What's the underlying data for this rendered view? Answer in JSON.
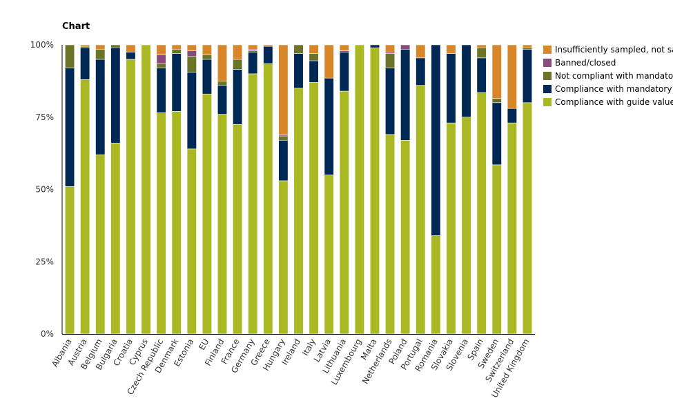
{
  "chart_data": {
    "type": "bar",
    "stacked": true,
    "normalized": true,
    "title": "Chart",
    "ylim": [
      0,
      100
    ],
    "yticks": [
      "0%",
      "25%",
      "50%",
      "75%",
      "100%"
    ],
    "legend_position": "right",
    "categories": [
      "Albania",
      "Austria",
      "Belgium",
      "Bulgaria",
      "Croatia",
      "Cyprus",
      "Czech Republic",
      "Denmark",
      "Estonia",
      "EU",
      "Finland",
      "France",
      "Germany",
      "Greece",
      "Hungary",
      "Ireland",
      "Italy",
      "Latvia",
      "Lithuania",
      "Luxembourg",
      "Malta",
      "Netherlands",
      "Poland",
      "Portugal",
      "Romania",
      "Slovakia",
      "Slovenia",
      "Spain",
      "Sweden",
      "Switzerland",
      "United Kingdom"
    ],
    "series": [
      {
        "name": "Compliance with guide values",
        "color": "#aab824",
        "values": [
          51,
          88,
          62,
          66,
          95,
          100,
          76.5,
          77,
          64,
          83,
          76,
          72.5,
          90,
          93.5,
          53,
          85,
          87,
          55,
          84,
          100,
          99,
          69,
          67,
          86,
          34,
          73,
          75,
          83.5,
          58.5,
          73,
          80
        ]
      },
      {
        "name": "Compliance with mandatory values",
        "color": "#002855",
        "values": [
          41,
          11,
          33,
          33,
          2.5,
          0,
          15.5,
          20,
          26.5,
          12,
          10,
          19,
          7.5,
          6,
          14,
          12,
          7.5,
          33.5,
          13.5,
          0,
          1,
          23,
          31.5,
          9.5,
          66,
          24,
          25,
          12,
          21.5,
          5,
          18.5
        ]
      },
      {
        "name": "Not compliant with mandatory values",
        "color": "#6b7428",
        "values": [
          8,
          0.5,
          3.5,
          1,
          0,
          0,
          1.5,
          1.5,
          5.5,
          1.5,
          1.5,
          3.5,
          0.5,
          0,
          1.5,
          3,
          2.5,
          0,
          0,
          0,
          0,
          5,
          0,
          0,
          0,
          0,
          0,
          3.5,
          1.5,
          0,
          0.5
        ]
      },
      {
        "name": "Banned/closed",
        "color": "#8b4a7d",
        "values": [
          0,
          0,
          0,
          0,
          0,
          0,
          3,
          0,
          2,
          0,
          0,
          0,
          0.5,
          0,
          0.5,
          0,
          0,
          0,
          0.5,
          0,
          0,
          0.5,
          1.5,
          0,
          0,
          0,
          0,
          0,
          0,
          0,
          0
        ]
      },
      {
        "name": "Insufficiently sampled, not sampled or new",
        "color": "#d7872a",
        "values": [
          0,
          0.5,
          1.5,
          0,
          2.5,
          0,
          3.5,
          1.5,
          2,
          3.5,
          12.5,
          5,
          1.5,
          0.5,
          31,
          0,
          3,
          11.5,
          2,
          0,
          0,
          2.5,
          0,
          4.5,
          0,
          3,
          0,
          1,
          18.5,
          22,
          1
        ]
      }
    ]
  }
}
